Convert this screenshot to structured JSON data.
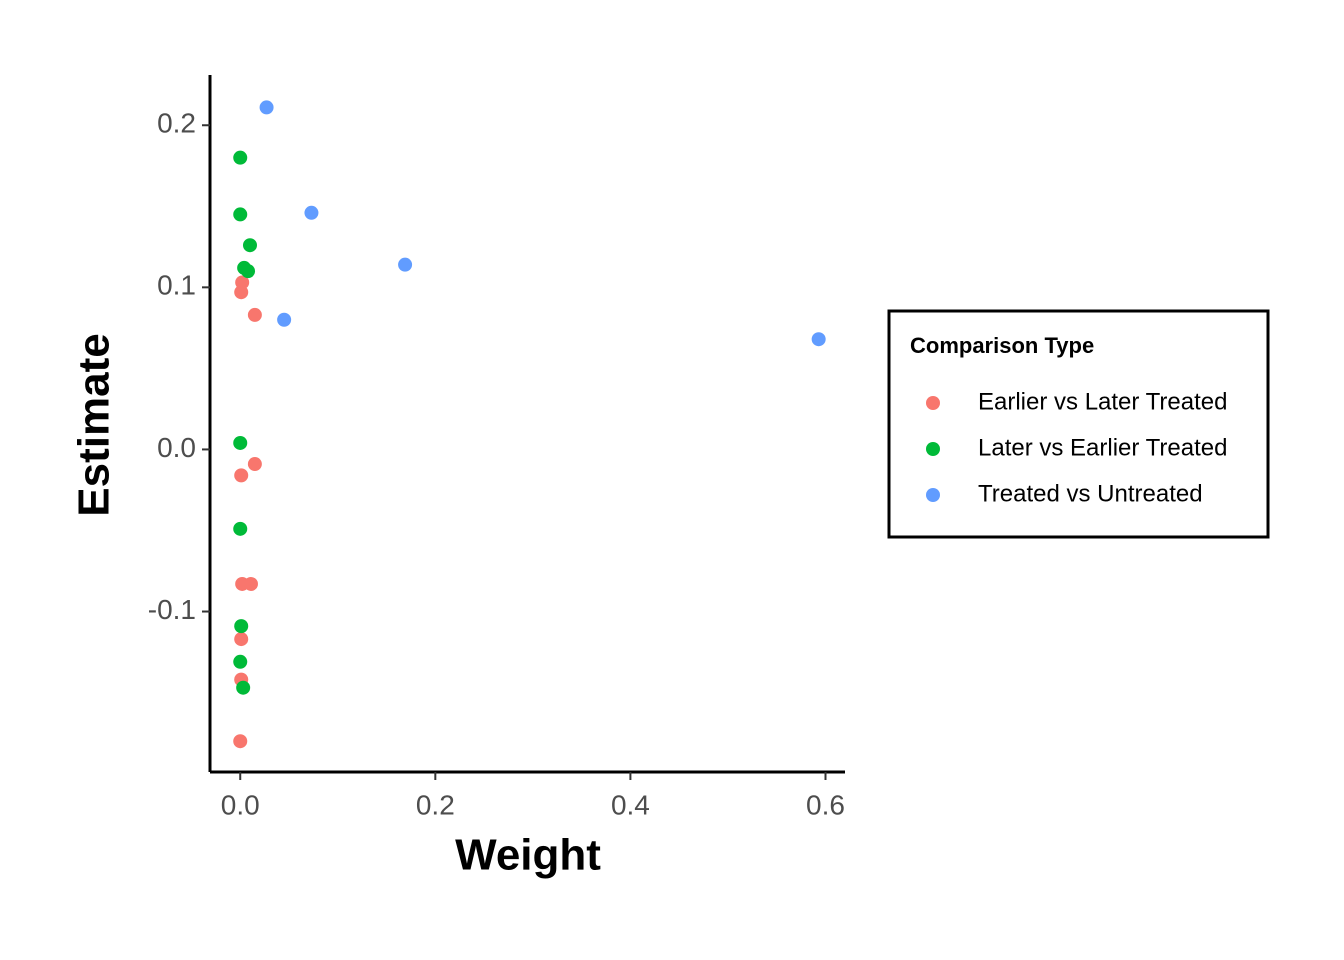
{
  "chart_data": {
    "type": "scatter",
    "xlabel": "Weight",
    "ylabel": "Estimate",
    "legend_title": "Comparison Type",
    "legend_position": "right",
    "xlim": [
      -0.031,
      0.62
    ],
    "ylim": [
      -0.199,
      0.231
    ],
    "xticks": [
      {
        "value": 0,
        "label": "0.0"
      },
      0.2,
      0.4,
      0.6
    ],
    "yticks": [
      -0.1,
      {
        "value": 0,
        "label": "0.0"
      },
      0.1,
      0.2
    ],
    "grid": false,
    "series": [
      {
        "name": "Earlier vs Later Treated",
        "color": "#F8766D",
        "x": [
          0.0,
          0.001,
          0.001,
          0.002,
          0.011,
          0.001,
          0.015,
          0.015,
          0.001,
          0.002
        ],
        "values": [
          -0.18,
          -0.142,
          -0.117,
          -0.083,
          -0.083,
          -0.016,
          -0.009,
          0.083,
          0.097,
          0.103
        ]
      },
      {
        "name": "Later vs Earlier Treated",
        "color": "#00BA38",
        "x": [
          0.0,
          0.0,
          0.01,
          0.004,
          0.008,
          0.0,
          0.0,
          0.001,
          0.0,
          0.003
        ],
        "values": [
          0.18,
          0.145,
          0.126,
          0.112,
          0.11,
          0.004,
          -0.049,
          -0.109,
          -0.131,
          -0.147
        ]
      },
      {
        "name": "Treated vs Untreated",
        "color": "#619CFF",
        "x": [
          0.027,
          0.073,
          0.169,
          0.045,
          0.593
        ],
        "values": [
          0.211,
          0.146,
          0.114,
          0.08,
          0.068
        ]
      }
    ]
  }
}
